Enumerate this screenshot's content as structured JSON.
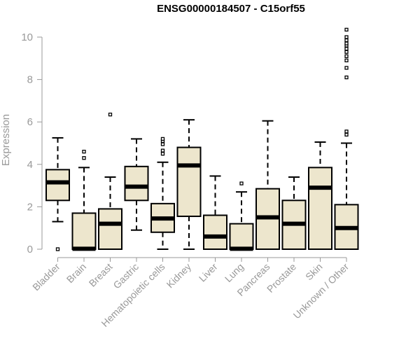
{
  "chart_data": {
    "type": "boxplot",
    "title": "ENSG00000184507 - C15orf55",
    "xlabel": "",
    "ylabel": "Expression",
    "ylim": [
      0,
      10.4
    ],
    "yticks": [
      0,
      2,
      4,
      6,
      8,
      10
    ],
    "grid": false,
    "box_fill": "#ede6cd",
    "categories": [
      "Bladder",
      "Brain",
      "Breast",
      "Gastric",
      "Hematopoietic cells",
      "Kidney",
      "Liver",
      "Lung",
      "Pancreas",
      "Prostate",
      "Skin",
      "Unknown / Other"
    ],
    "boxes": [
      {
        "whisker_low": 1.3,
        "q1": 2.3,
        "median": 3.15,
        "q3": 3.75,
        "whisker_high": 5.25,
        "outliers": [
          0.0
        ]
      },
      {
        "whisker_low": 0.0,
        "q1": 0.0,
        "median": 0.02,
        "q3": 1.7,
        "whisker_high": 3.85,
        "outliers": [
          4.3,
          4.6
        ]
      },
      {
        "whisker_low": 0.0,
        "q1": 0.0,
        "median": 1.2,
        "q3": 1.9,
        "whisker_high": 3.4,
        "outliers": [
          6.35
        ]
      },
      {
        "whisker_low": 0.9,
        "q1": 2.3,
        "median": 2.95,
        "q3": 3.9,
        "whisker_high": 5.2,
        "outliers": []
      },
      {
        "whisker_low": 0.0,
        "q1": 0.8,
        "median": 1.45,
        "q3": 2.15,
        "whisker_high": 4.1,
        "outliers": [
          4.5,
          4.65,
          4.95,
          5.1,
          5.2
        ]
      },
      {
        "whisker_low": 0.0,
        "q1": 1.55,
        "median": 3.95,
        "q3": 4.8,
        "whisker_high": 6.1,
        "outliers": []
      },
      {
        "whisker_low": 0.0,
        "q1": 0.0,
        "median": 0.6,
        "q3": 1.6,
        "whisker_high": 3.45,
        "outliers": []
      },
      {
        "whisker_low": 0.0,
        "q1": 0.0,
        "median": 0.02,
        "q3": 1.2,
        "whisker_high": 2.7,
        "outliers": [
          3.1
        ]
      },
      {
        "whisker_low": 0.0,
        "q1": 0.0,
        "median": 1.5,
        "q3": 2.85,
        "whisker_high": 6.05,
        "outliers": []
      },
      {
        "whisker_low": 0.0,
        "q1": 0.0,
        "median": 1.2,
        "q3": 2.3,
        "whisker_high": 3.4,
        "outliers": []
      },
      {
        "whisker_low": 0.0,
        "q1": 0.0,
        "median": 2.9,
        "q3": 3.85,
        "whisker_high": 5.05,
        "outliers": []
      },
      {
        "whisker_low": 0.0,
        "q1": 0.0,
        "median": 1.0,
        "q3": 2.1,
        "whisker_high": 5.0,
        "outliers": [
          5.4,
          5.55,
          8.1,
          8.55,
          8.9,
          9.1,
          9.3,
          9.45,
          9.6,
          9.7,
          9.85,
          10.0,
          10.35
        ]
      }
    ]
  }
}
